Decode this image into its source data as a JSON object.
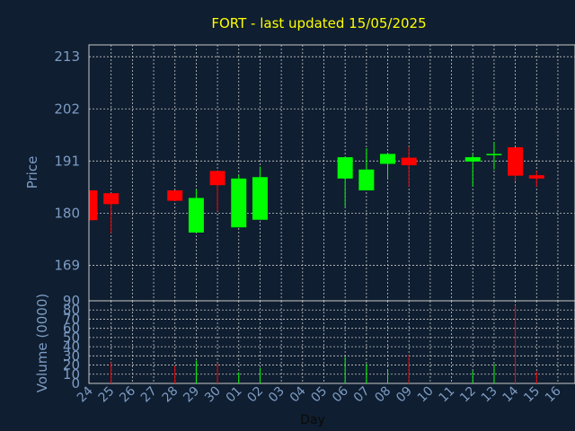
{
  "chart_data": {
    "type": "candlestick",
    "title": "FORT - last updated 15/05/2025",
    "xlabel": "Day",
    "ylabel": "Price",
    "volume_label": "Volume (0000)",
    "grid": true,
    "x_ticks": [
      "24",
      "25",
      "26",
      "27",
      "28",
      "29",
      "30",
      "01",
      "02",
      "03",
      "04",
      "05",
      "06",
      "07",
      "08",
      "09",
      "10",
      "11",
      "12",
      "13",
      "14",
      "15",
      "16"
    ],
    "price_ticks": [
      169,
      180,
      191,
      202,
      213
    ],
    "price_ylim": [
      161.5,
      215.5
    ],
    "volume_ticks": [
      0,
      10,
      20,
      30,
      40,
      50,
      60,
      70,
      80,
      90
    ],
    "volume_ylim": [
      0,
      90
    ],
    "colors": {
      "background": "#0f1e30",
      "axis_text": "#7d9cc4",
      "title": "#ffff00",
      "grid": "#c8c8c8",
      "up": "#00ff00",
      "down": "#ff0000"
    },
    "candles": [
      {
        "i": 0,
        "open": 184.8,
        "high": 184.8,
        "low": 178.5,
        "close": 178.5,
        "volume": 0
      },
      {
        "i": 1,
        "open": 184.2,
        "high": 184.2,
        "low": 175.8,
        "close": 181.9,
        "volume": 23
      },
      {
        "i": 4,
        "open": 184.8,
        "high": 184.8,
        "low": 182.6,
        "close": 182.6,
        "volume": 19
      },
      {
        "i": 5,
        "open": 175.9,
        "high": 185.0,
        "low": 175.9,
        "close": 183.2,
        "volume": 25
      },
      {
        "i": 6,
        "open": 188.9,
        "high": 188.9,
        "low": 180.4,
        "close": 185.9,
        "volume": 22
      },
      {
        "i": 7,
        "open": 177.0,
        "high": 188.0,
        "low": 177.0,
        "close": 187.3,
        "volume": 12
      },
      {
        "i": 8,
        "open": 178.6,
        "high": 189.8,
        "low": 178.6,
        "close": 187.6,
        "volume": 17
      },
      {
        "i": 12,
        "open": 187.3,
        "high": 191.8,
        "low": 181.3,
        "close": 191.8,
        "volume": 29
      },
      {
        "i": 13,
        "open": 184.8,
        "high": 193.7,
        "low": 184.8,
        "close": 189.2,
        "volume": 21
      },
      {
        "i": 14,
        "open": 190.4,
        "high": 192.5,
        "low": 187.3,
        "close": 192.5,
        "volume": 14
      },
      {
        "i": 15,
        "open": 191.7,
        "high": 194.0,
        "low": 185.6,
        "close": 190.1,
        "volume": 31
      },
      {
        "i": 18,
        "open": 190.9,
        "high": 192.5,
        "low": 185.6,
        "close": 191.8,
        "volume": 14
      },
      {
        "i": 19,
        "open": 192.5,
        "high": 195.0,
        "low": 189.2,
        "close": 192.5,
        "volume": 21
      },
      {
        "i": 20,
        "open": 193.9,
        "high": 193.9,
        "low": 186.7,
        "close": 187.9,
        "volume": 85
      },
      {
        "i": 21,
        "open": 188.0,
        "high": 188.9,
        "low": 185.6,
        "close": 187.3,
        "volume": 13
      }
    ]
  }
}
